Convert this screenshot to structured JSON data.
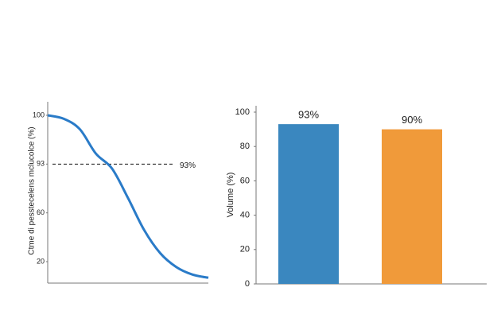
{
  "chart_data": [
    {
      "type": "line",
      "y_label": "Ctme di pesstecelens mclucolce (%)",
      "x": [
        0,
        1,
        2,
        3,
        4,
        5,
        6,
        7,
        8,
        9,
        10
      ],
      "xlim": [
        0,
        10
      ],
      "values": [
        100,
        99.5,
        98,
        94.5,
        90,
        70,
        46,
        27,
        15,
        8,
        5
      ],
      "color": "#2a7bc8",
      "ylim": [
        0,
        100
      ],
      "yticks": [
        20,
        60,
        93,
        100
      ],
      "reference_line": {
        "value": 93,
        "label": "93%"
      }
    },
    {
      "type": "bar",
      "y_label": "Volume (%)",
      "categories": [
        null,
        null
      ],
      "values": [
        93,
        90
      ],
      "value_labels": [
        "93%",
        "90%"
      ],
      "colors": [
        "#3a87bf",
        "#f09a3a"
      ],
      "ylim": [
        0,
        100
      ],
      "yticks": [
        0,
        20,
        40,
        60,
        80,
        100
      ]
    }
  ]
}
